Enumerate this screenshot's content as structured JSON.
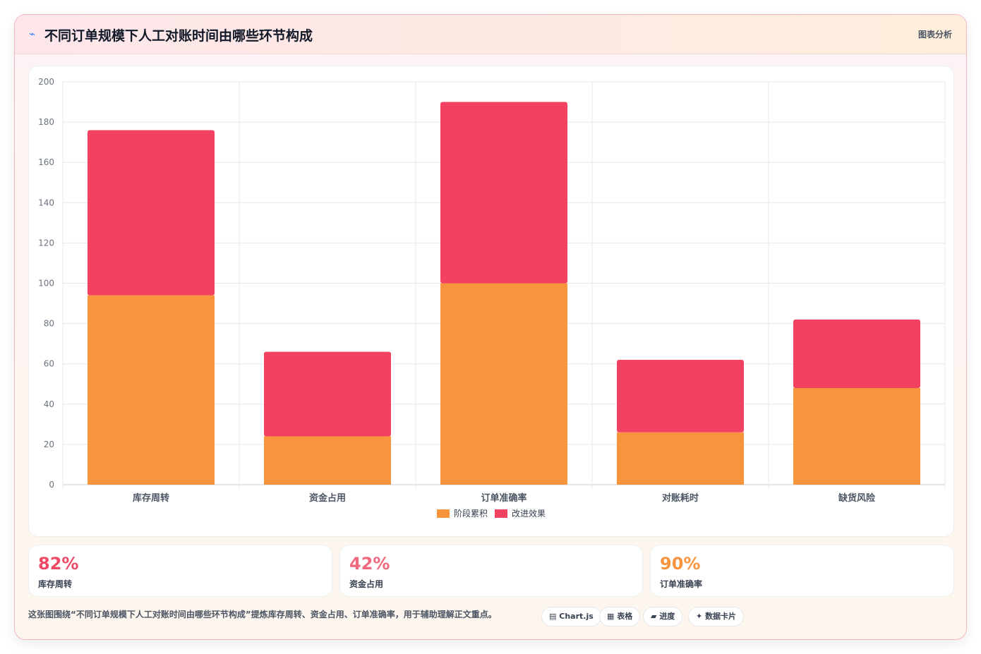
{
  "header": {
    "icon": "chart-icon",
    "title": "不同订单规模下人工对账时间由哪些环节构成",
    "link_label": "图表分析"
  },
  "colors": {
    "series1": "#f9943e",
    "series2": "#f24161",
    "stat1": "#ee4a67",
    "stat2": "#f0687c",
    "stat3": "#f9943e"
  },
  "chart_data": {
    "type": "bar",
    "stacked": true,
    "categories": [
      "库存周转",
      "资金占用",
      "订单准确率",
      "对账耗时",
      "缺货风险"
    ],
    "series": [
      {
        "name": "阶段累积",
        "values": [
          94,
          24,
          100,
          26,
          48
        ]
      },
      {
        "name": "改进效果",
        "values": [
          82,
          42,
          90,
          36,
          34
        ]
      }
    ],
    "ylim": [
      0,
      200
    ],
    "yticks": [
      0,
      20,
      40,
      60,
      80,
      100,
      120,
      140,
      160,
      180,
      200
    ],
    "grid": true,
    "legend": "bottom-center"
  },
  "stats": [
    {
      "value": "82%",
      "label": "库存周转"
    },
    {
      "value": "42%",
      "label": "资金占用"
    },
    {
      "value": "90%",
      "label": "订单准确率"
    }
  ],
  "footer": {
    "text": "这张图围绕“不同订单规模下人工对账时间由哪些环节构成”提炼库存周转、资金占用、订单准确率，用于辅助理解正文重点。",
    "tags": [
      {
        "icon": "▤",
        "label": "Chart.js"
      },
      {
        "icon": "▦",
        "label": "表格"
      },
      {
        "icon": "▰",
        "label": "进度"
      },
      {
        "icon": "✦",
        "label": "数据卡片"
      }
    ]
  }
}
